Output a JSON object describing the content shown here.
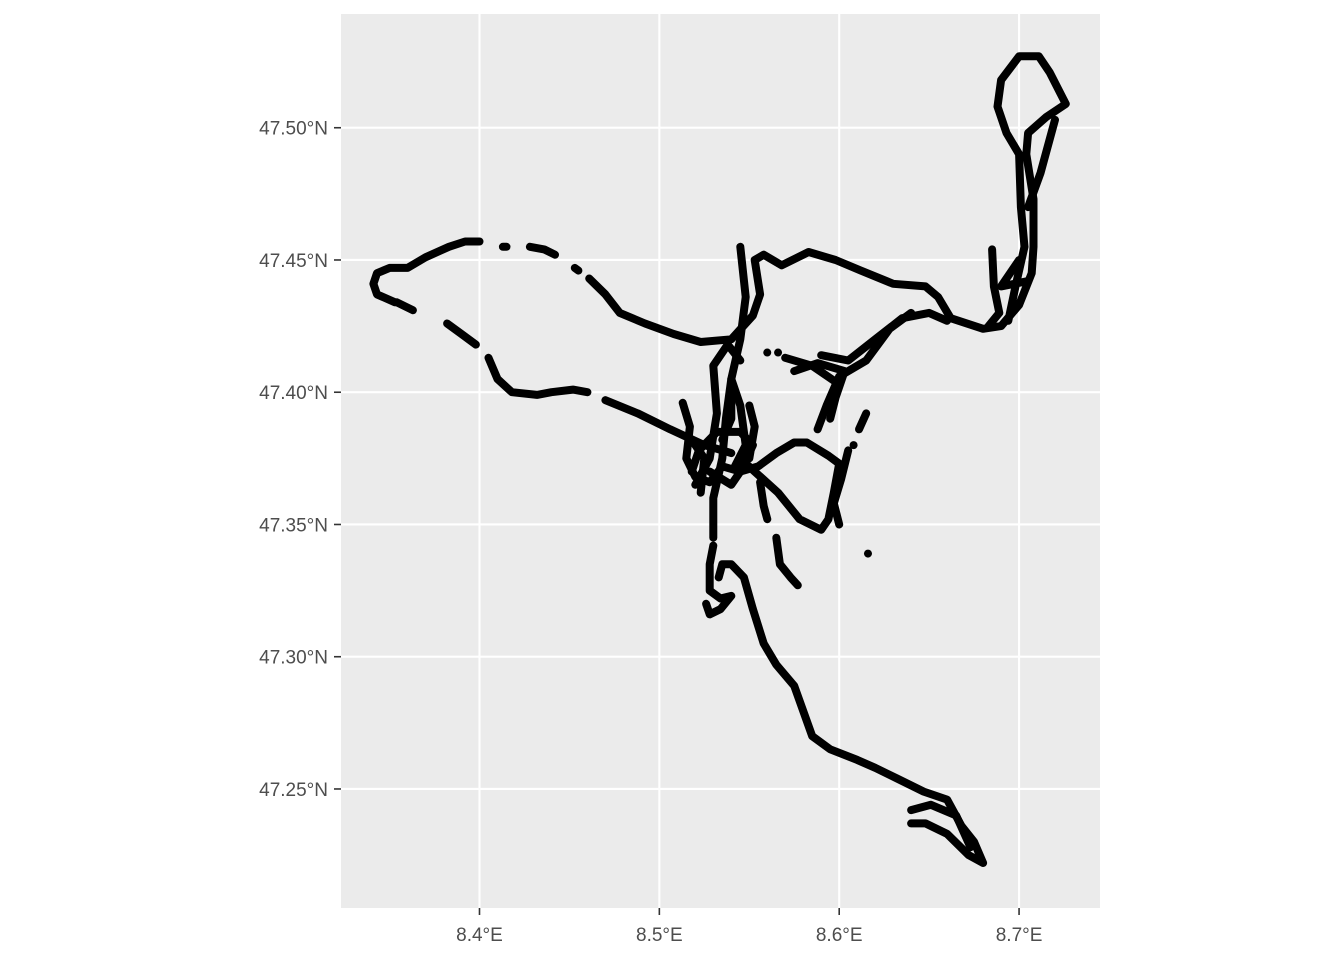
{
  "chart_data": {
    "type": "scatter",
    "title": "",
    "xlabel": "",
    "ylabel": "",
    "xlim": [
      8.323,
      8.745
    ],
    "ylim": [
      47.205,
      47.543
    ],
    "grid": true,
    "legend": "none",
    "x_ticks": [
      {
        "value": 8.4,
        "label": "8.4°E"
      },
      {
        "value": 8.5,
        "label": "8.5°E"
      },
      {
        "value": 8.6,
        "label": "8.6°E"
      },
      {
        "value": 8.7,
        "label": "8.7°E"
      }
    ],
    "y_ticks": [
      {
        "value": 47.25,
        "label": "47.25°N"
      },
      {
        "value": 47.3,
        "label": "47.30°N"
      },
      {
        "value": 47.35,
        "label": "47.35°N"
      },
      {
        "value": 47.4,
        "label": "47.40°N"
      },
      {
        "value": 47.45,
        "label": "47.45°N"
      },
      {
        "value": 47.5,
        "label": "47.50°N"
      }
    ],
    "point_color": "#000000",
    "tracks": [
      {
        "points": [
          [
            8.353,
            47.434
          ],
          [
            8.343,
            47.437
          ],
          [
            8.341,
            47.441
          ],
          [
            8.343,
            47.445
          ],
          [
            8.35,
            47.447
          ],
          [
            8.36,
            47.447
          ],
          [
            8.37,
            47.451
          ],
          [
            8.383,
            47.455
          ],
          [
            8.392,
            47.457
          ],
          [
            8.4,
            47.457
          ]
        ]
      },
      {
        "points": [
          [
            8.413,
            47.455
          ],
          [
            8.415,
            47.455
          ]
        ]
      },
      {
        "points": [
          [
            8.428,
            47.455
          ],
          [
            8.436,
            47.454
          ],
          [
            8.442,
            47.452
          ]
        ]
      },
      {
        "points": [
          [
            8.453,
            47.447
          ],
          [
            8.455,
            47.446
          ]
        ]
      },
      {
        "points": [
          [
            8.461,
            47.443
          ],
          [
            8.47,
            47.437
          ],
          [
            8.478,
            47.43
          ],
          [
            8.492,
            47.426
          ],
          [
            8.508,
            47.422
          ],
          [
            8.523,
            47.419
          ],
          [
            8.54,
            47.42
          ],
          [
            8.552,
            47.429
          ],
          [
            8.556,
            47.437
          ],
          [
            8.553,
            47.45
          ],
          [
            8.558,
            47.452
          ],
          [
            8.568,
            47.448
          ],
          [
            8.583,
            47.453
          ],
          [
            8.598,
            47.45
          ],
          [
            8.612,
            47.446
          ],
          [
            8.63,
            47.441
          ],
          [
            8.648,
            47.44
          ],
          [
            8.655,
            47.436
          ],
          [
            8.662,
            47.428
          ],
          [
            8.68,
            47.424
          ],
          [
            8.69,
            47.425
          ],
          [
            8.7,
            47.433
          ],
          [
            8.707,
            47.445
          ],
          [
            8.708,
            47.455
          ],
          [
            8.708,
            47.473
          ],
          [
            8.704,
            47.49
          ],
          [
            8.705,
            47.498
          ],
          [
            8.715,
            47.504
          ],
          [
            8.726,
            47.509
          ],
          [
            8.717,
            47.521
          ],
          [
            8.711,
            47.527
          ],
          [
            8.7,
            47.527
          ],
          [
            8.69,
            47.518
          ],
          [
            8.688,
            47.508
          ],
          [
            8.693,
            47.498
          ],
          [
            8.7,
            47.49
          ],
          [
            8.701,
            47.47
          ],
          [
            8.703,
            47.455
          ],
          [
            8.698,
            47.44
          ],
          [
            8.694,
            47.427
          ]
        ]
      },
      {
        "points": [
          [
            8.685,
            47.454
          ],
          [
            8.686,
            47.44
          ],
          [
            8.689,
            47.43
          ],
          [
            8.683,
            47.425
          ]
        ]
      },
      {
        "points": [
          [
            8.705,
            47.442
          ],
          [
            8.69,
            47.44
          ],
          [
            8.7,
            47.45
          ]
        ]
      },
      {
        "points": [
          [
            8.72,
            47.503
          ],
          [
            8.712,
            47.483
          ],
          [
            8.705,
            47.47
          ]
        ]
      },
      {
        "points": [
          [
            8.363,
            47.431
          ],
          [
            8.354,
            47.434
          ]
        ]
      },
      {
        "points": [
          [
            8.382,
            47.426
          ],
          [
            8.39,
            47.422
          ],
          [
            8.398,
            47.418
          ]
        ]
      },
      {
        "points": [
          [
            8.405,
            47.413
          ],
          [
            8.41,
            47.405
          ],
          [
            8.418,
            47.4
          ],
          [
            8.432,
            47.399
          ],
          [
            8.44,
            47.4
          ],
          [
            8.452,
            47.401
          ],
          [
            8.46,
            47.4
          ]
        ]
      },
      {
        "points": [
          [
            8.47,
            47.397
          ],
          [
            8.488,
            47.392
          ],
          [
            8.506,
            47.386
          ],
          [
            8.525,
            47.38
          ],
          [
            8.54,
            47.377
          ]
        ]
      },
      {
        "points": [
          [
            8.545,
            47.455
          ],
          [
            8.548,
            47.436
          ],
          [
            8.545,
            47.42
          ],
          [
            8.54,
            47.405
          ],
          [
            8.537,
            47.39
          ],
          [
            8.535,
            47.375
          ],
          [
            8.53,
            47.36
          ],
          [
            8.53,
            47.345
          ]
        ]
      },
      {
        "points": [
          [
            8.53,
            47.342
          ],
          [
            8.528,
            47.335
          ],
          [
            8.528,
            47.325
          ],
          [
            8.534,
            47.322
          ],
          [
            8.54,
            47.323
          ],
          [
            8.534,
            47.318
          ],
          [
            8.528,
            47.316
          ],
          [
            8.526,
            47.32
          ]
        ]
      },
      {
        "points": [
          [
            8.533,
            47.33
          ],
          [
            8.535,
            47.335
          ],
          [
            8.54,
            47.335
          ],
          [
            8.547,
            47.33
          ],
          [
            8.552,
            47.318
          ],
          [
            8.558,
            47.305
          ],
          [
            8.565,
            47.297
          ],
          [
            8.575,
            47.289
          ],
          [
            8.585,
            47.27
          ],
          [
            8.595,
            47.265
          ],
          [
            8.61,
            47.261
          ],
          [
            8.62,
            47.258
          ],
          [
            8.632,
            47.254
          ],
          [
            8.647,
            47.249
          ],
          [
            8.66,
            47.246
          ],
          [
            8.668,
            47.236
          ],
          [
            8.675,
            47.23
          ],
          [
            8.68,
            47.222
          ],
          [
            8.672,
            47.225
          ],
          [
            8.66,
            47.233
          ],
          [
            8.648,
            47.237
          ],
          [
            8.64,
            47.237
          ]
        ]
      },
      {
        "points": [
          [
            8.64,
            47.242
          ],
          [
            8.651,
            47.244
          ],
          [
            8.665,
            47.24
          ],
          [
            8.673,
            47.228
          ]
        ]
      },
      {
        "points": [
          [
            8.513,
            47.396
          ],
          [
            8.517,
            47.387
          ],
          [
            8.515,
            47.375
          ],
          [
            8.52,
            47.368
          ],
          [
            8.528,
            47.366
          ],
          [
            8.535,
            47.372
          ],
          [
            8.545,
            47.37
          ],
          [
            8.555,
            47.372
          ],
          [
            8.565,
            47.377
          ],
          [
            8.575,
            47.381
          ],
          [
            8.582,
            47.381
          ],
          [
            8.594,
            47.376
          ],
          [
            8.6,
            47.373
          ],
          [
            8.597,
            47.362
          ],
          [
            8.594,
            47.352
          ],
          [
            8.59,
            47.348
          ],
          [
            8.578,
            47.352
          ],
          [
            8.566,
            47.362
          ],
          [
            8.553,
            47.37
          ],
          [
            8.545,
            47.375
          ]
        ]
      },
      {
        "points": [
          [
            8.518,
            47.37
          ],
          [
            8.522,
            47.378
          ],
          [
            8.532,
            47.385
          ],
          [
            8.545,
            47.385
          ],
          [
            8.552,
            47.38
          ],
          [
            8.545,
            47.37
          ],
          [
            8.54,
            47.365
          ],
          [
            8.528,
            47.37
          ]
        ]
      },
      {
        "points": [
          [
            8.52,
            47.365
          ],
          [
            8.528,
            47.375
          ],
          [
            8.532,
            47.392
          ],
          [
            8.53,
            47.41
          ],
          [
            8.538,
            47.418
          ],
          [
            8.545,
            47.412
          ]
        ]
      },
      {
        "points": [
          [
            8.54,
            47.405
          ],
          [
            8.545,
            47.395
          ],
          [
            8.548,
            47.38
          ],
          [
            8.542,
            47.372
          ]
        ]
      },
      {
        "points": [
          [
            8.59,
            47.414
          ],
          [
            8.605,
            47.412
          ],
          [
            8.62,
            47.42
          ],
          [
            8.635,
            47.428
          ],
          [
            8.65,
            47.43
          ],
          [
            8.66,
            47.427
          ]
        ]
      },
      {
        "points": [
          [
            8.575,
            47.408
          ],
          [
            8.588,
            47.411
          ],
          [
            8.603,
            47.408
          ],
          [
            8.598,
            47.398
          ],
          [
            8.595,
            47.39
          ]
        ]
      },
      {
        "points": [
          [
            8.588,
            47.386
          ],
          [
            8.593,
            47.395
          ],
          [
            8.6,
            47.406
          ],
          [
            8.615,
            47.412
          ],
          [
            8.628,
            47.424
          ],
          [
            8.64,
            47.43
          ]
        ]
      },
      {
        "points": [
          [
            8.57,
            47.413
          ],
          [
            8.585,
            47.41
          ],
          [
            8.6,
            47.403
          ]
        ]
      },
      {
        "points": [
          [
            8.611,
            47.386
          ],
          [
            8.615,
            47.392
          ]
        ]
      },
      {
        "points": [
          [
            8.605,
            47.378
          ],
          [
            8.601,
            47.367
          ],
          [
            8.597,
            47.358
          ],
          [
            8.6,
            47.35
          ]
        ]
      },
      {
        "points": [
          [
            8.556,
            47.366
          ],
          [
            8.558,
            47.357
          ],
          [
            8.56,
            47.352
          ]
        ]
      },
      {
        "points": [
          [
            8.565,
            47.345
          ],
          [
            8.567,
            47.335
          ],
          [
            8.573,
            47.33
          ],
          [
            8.577,
            47.327
          ]
        ]
      },
      {
        "points": [
          [
            8.523,
            47.362
          ],
          [
            8.525,
            47.375
          ],
          [
            8.518,
            47.382
          ]
        ]
      },
      {
        "points": [
          [
            8.535,
            47.382
          ],
          [
            8.54,
            47.39
          ],
          [
            8.54,
            47.399
          ]
        ]
      },
      {
        "points": [
          [
            8.55,
            47.375
          ],
          [
            8.553,
            47.387
          ],
          [
            8.55,
            47.395
          ]
        ]
      }
    ],
    "isolated_points": [
      [
        8.616,
        47.339
      ],
      [
        8.56,
        47.415
      ],
      [
        8.566,
        47.415
      ],
      [
        8.608,
        47.38
      ]
    ]
  }
}
